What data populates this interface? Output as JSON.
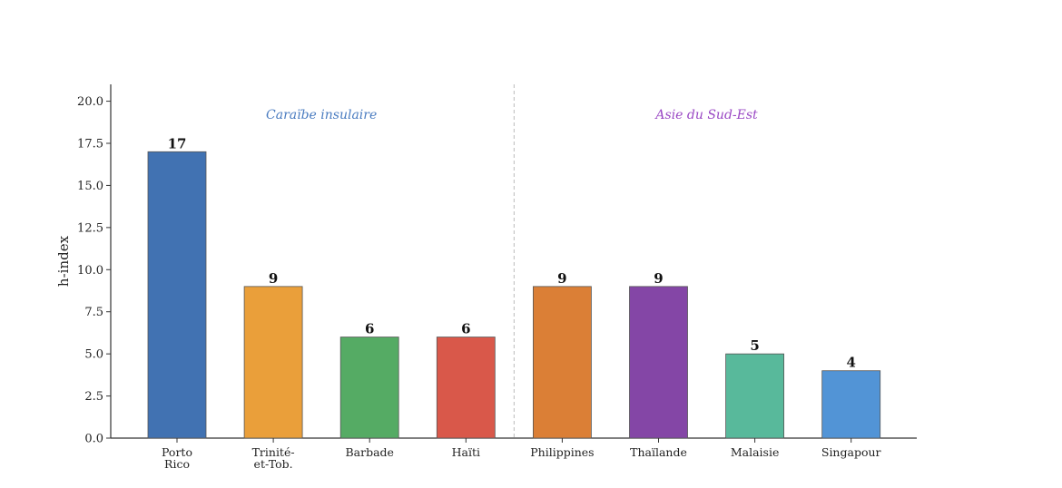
{
  "chart_data": {
    "type": "bar",
    "ylabel": "h-index",
    "xlabel": "",
    "ylim": [
      0,
      21
    ],
    "yticks": [
      "0.0",
      "2.5",
      "5.0",
      "7.5",
      "10.0",
      "12.5",
      "15.0",
      "17.5",
      "20.0"
    ],
    "ytick_values": [
      0,
      2.5,
      5,
      7.5,
      10,
      12.5,
      15,
      17.5,
      20
    ],
    "grid": false,
    "categories": [
      [
        "Porto",
        "Rico"
      ],
      [
        "Trinité-",
        "et-Tob."
      ],
      [
        "Barbade"
      ],
      [
        "Haïti"
      ],
      [
        "Philippines"
      ],
      [
        "Thaïlande"
      ],
      [
        "Malaisie"
      ],
      [
        "Singapour"
      ]
    ],
    "values": [
      17,
      9,
      6,
      6,
      9,
      9,
      5,
      4
    ],
    "value_labels": [
      "17",
      "9",
      "6",
      "6",
      "9",
      "9",
      "5",
      "4"
    ],
    "colors": [
      "#4172b2",
      "#ea9f3a",
      "#55ab64",
      "#d9584a",
      "#db7f36",
      "#8446a6",
      "#58b99b",
      "#5294d6"
    ],
    "groups": [
      {
        "name": "Caraïbe insulaire",
        "color": "#4a7cc0",
        "from": 0,
        "to": 3
      },
      {
        "name": "Asie du Sud-Est",
        "color": "#9a48c4",
        "from": 4,
        "to": 7
      }
    ],
    "separator_after_index": 3
  }
}
